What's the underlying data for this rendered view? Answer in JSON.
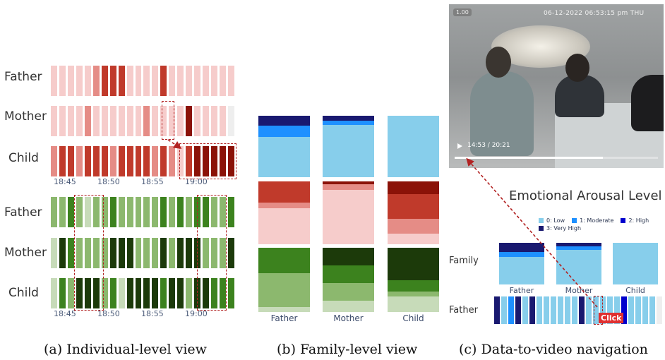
{
  "colors": {
    "red": [
      "#f6cccb",
      "#e58c86",
      "#c03a2b",
      "#8b1208"
    ],
    "green": [
      "#c7dbb9",
      "#8cb86e",
      "#3c821e",
      "#1c3a0a"
    ],
    "blue": [
      "#87ceeb",
      "#1e90ff",
      "#0000cd",
      "#191970"
    ],
    "dashed_box": "#b22222",
    "click_badge": "#e03030"
  },
  "panel_a": {
    "red_rows": [
      {
        "label": "Father",
        "cells": [
          0,
          0,
          0,
          0,
          0,
          1,
          2,
          2,
          2,
          0,
          0,
          0,
          0,
          2,
          0,
          0,
          0,
          0,
          0,
          0,
          0,
          0
        ]
      },
      {
        "label": "Mother",
        "cells": [
          0,
          0,
          0,
          0,
          1,
          0,
          0,
          0,
          0,
          0,
          0,
          1,
          0,
          0,
          0,
          0,
          3,
          0,
          0,
          0,
          0,
          9
        ]
      },
      {
        "label": "Child",
        "cells": [
          1,
          2,
          2,
          1,
          2,
          2,
          2,
          1,
          2,
          2,
          2,
          2,
          1,
          2,
          1,
          0,
          2,
          3,
          3,
          3,
          3,
          3
        ]
      }
    ],
    "red_ticks": [
      "18:45",
      "18:50",
      "18:55",
      "19:00"
    ],
    "green_rows": [
      {
        "label": "Father",
        "cells": [
          1,
          1,
          2,
          1,
          0,
          1,
          1,
          2,
          1,
          1,
          1,
          1,
          1,
          2,
          1,
          2,
          1,
          2,
          2,
          1,
          1,
          2
        ]
      },
      {
        "label": "Mother",
        "cells": [
          0,
          3,
          2,
          1,
          1,
          1,
          1,
          3,
          3,
          3,
          1,
          1,
          1,
          3,
          1,
          3,
          3,
          3,
          1,
          1,
          1,
          3
        ]
      },
      {
        "label": "Child",
        "cells": [
          0,
          2,
          1,
          3,
          3,
          3,
          1,
          2,
          0,
          3,
          3,
          3,
          3,
          2,
          3,
          3,
          1,
          3,
          3,
          2,
          2,
          2
        ]
      }
    ],
    "green_ticks": [
      "18:45",
      "18:50",
      "18:55",
      "19:00"
    ]
  },
  "panel_b": {
    "labels": [
      "Father",
      "Mother",
      "Child"
    ],
    "blue_stacks": [
      [
        0.16,
        0.18,
        0.66,
        0
      ],
      [
        0.08,
        0.07,
        0.85,
        0
      ],
      [
        0,
        0,
        1.0,
        0
      ]
    ],
    "red_stacks": [
      [
        0.34,
        0.09,
        0.57,
        0
      ],
      [
        0.05,
        0.09,
        0.86,
        0
      ],
      [
        0.2,
        0.39,
        0.24,
        0.17
      ]
    ],
    "green_stacks": [
      [
        0.4,
        0.52,
        0.08
      ],
      [
        0.27,
        0.28,
        0.27,
        0.18
      ],
      [
        0.51,
        0.17,
        0.08,
        0.24
      ]
    ]
  },
  "panel_c": {
    "video": {
      "tag": "1.00",
      "timestamp": "06-12-2022 06:53:15 pm THU",
      "time": "14:53 / 20:21",
      "play_icon": "play-icon"
    },
    "title": "Emotional Arousal Level",
    "legend": [
      {
        "label": "0: Low",
        "color": "#87ceeb"
      },
      {
        "label": "1: Moderate",
        "color": "#1e90ff"
      },
      {
        "label": "2: High",
        "color": "#0000cd"
      },
      {
        "label": "3: Very High",
        "color": "#191970"
      }
    ],
    "family_label": "Family",
    "father_label": "Father",
    "bar_labels": [
      "Father",
      "Mother",
      "Child"
    ],
    "family_stacks": [
      [
        0.22,
        0.12,
        0.66
      ],
      [
        0.09,
        0.08,
        0.83
      ],
      [
        0,
        0,
        1.0
      ]
    ],
    "father_cells": [
      3,
      0,
      1,
      3,
      0,
      3,
      0,
      0,
      0,
      0,
      0,
      0,
      3,
      0,
      0,
      0,
      0,
      0,
      2,
      0,
      0,
      0,
      0,
      9
    ],
    "click_label": "Click"
  },
  "captions": {
    "a": "(a) Individual-level view",
    "b": "(b) Family-level view",
    "c": "(c) Data-to-video navigation"
  }
}
